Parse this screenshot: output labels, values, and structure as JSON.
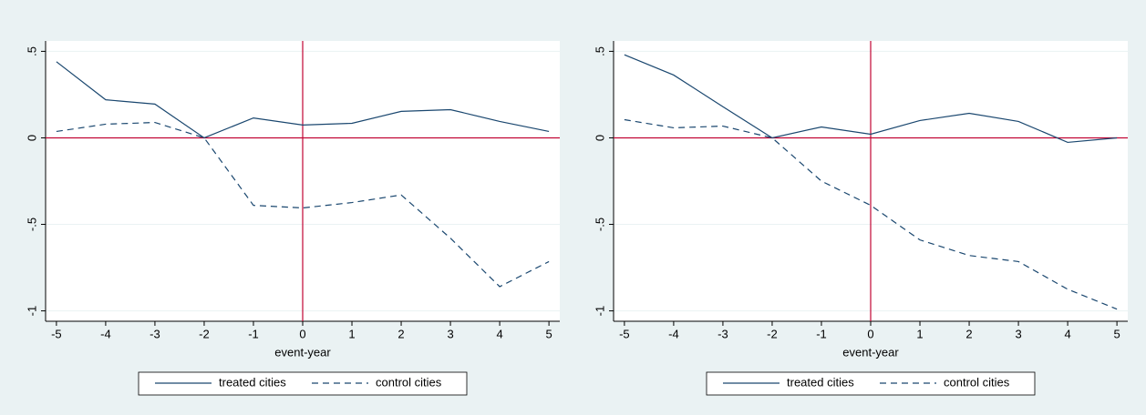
{
  "chart_data": [
    {
      "type": "line",
      "xlabel": "event-year",
      "x": [
        -5,
        -4,
        -3,
        -2,
        -1,
        0,
        1,
        2,
        3,
        4,
        5
      ],
      "series": [
        {
          "name": "treated cities",
          "color": "#1a476f",
          "dash": "solid",
          "values": [
            0.44,
            0.22,
            0.195,
            0,
            0.115,
            0.074,
            0.084,
            0.153,
            0.163,
            0.095,
            0.037
          ]
        },
        {
          "name": "control cities",
          "color": "#1a476f",
          "dash": "dashed",
          "values": [
            0.037,
            0.079,
            0.089,
            0,
            -0.39,
            -0.405,
            -0.374,
            -0.33,
            -0.58,
            -0.86,
            -0.715
          ]
        }
      ],
      "xlim": [
        -5.22,
        5.22
      ],
      "ylim": [
        -1.06,
        0.56
      ],
      "xticks": [
        -5,
        -4,
        -3,
        -2,
        -1,
        0,
        1,
        2,
        3,
        4,
        5
      ],
      "yticks": [
        {
          "value": -1,
          "label": "-1"
        },
        {
          "value": -0.5,
          "label": "-.5"
        },
        0,
        {
          "value": 0.5,
          "label": ".5"
        }
      ],
      "grid": true,
      "reference_lines": {
        "x": 0,
        "y": 0,
        "color": "#c10534"
      },
      "legend": "bottom"
    },
    {
      "type": "line",
      "xlabel": "event-year",
      "x": [
        -5,
        -4,
        -3,
        -2,
        -1,
        0,
        1,
        2,
        3,
        4,
        5
      ],
      "series": [
        {
          "name": "treated cities",
          "color": "#1a476f",
          "dash": "solid",
          "values": [
            0.48,
            0.363,
            0.18,
            0,
            0.063,
            0.021,
            0.1,
            0.142,
            0.095,
            -0.026,
            0
          ]
        },
        {
          "name": "control cities",
          "color": "#1a476f",
          "dash": "dashed",
          "values": [
            0.105,
            0.058,
            0.068,
            0,
            -0.25,
            -0.39,
            -0.59,
            -0.68,
            -0.715,
            -0.875,
            -0.99
          ]
        }
      ],
      "xlim": [
        -5.22,
        5.22
      ],
      "ylim": [
        -1.06,
        0.56
      ],
      "xticks": [
        -5,
        -4,
        -3,
        -2,
        -1,
        0,
        1,
        2,
        3,
        4,
        5
      ],
      "yticks": [
        {
          "value": -1,
          "label": "-1"
        },
        {
          "value": -0.5,
          "label": "-.5"
        },
        0,
        {
          "value": 0.5,
          "label": ".5"
        }
      ],
      "grid": true,
      "reference_lines": {
        "x": 0,
        "y": 0,
        "color": "#c10534"
      },
      "legend": "bottom"
    }
  ]
}
